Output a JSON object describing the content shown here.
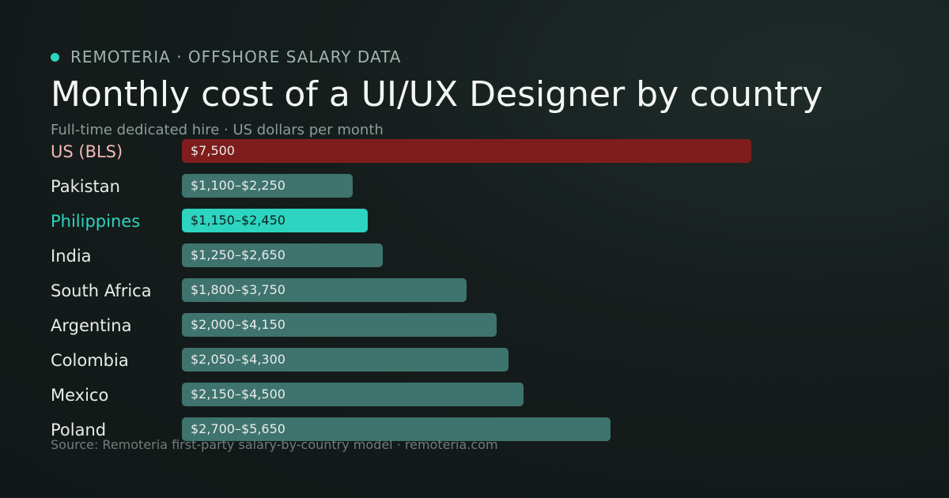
{
  "eyebrow": "REMOTERIA · OFFSHORE SALARY DATA",
  "title": "Monthly cost of a UI/UX Designer by country",
  "subtitle": "Full-time dedicated hire · US dollars per month",
  "source": "Source: Remoteria first-party salary-by-country model · remoteria.com",
  "colors": {
    "accent": "#2dd4bf",
    "us_bar": "#7f1d1d",
    "us_label": "#f2b8b5",
    "default_bar": "#3f736d",
    "bar_text": "#e8ecea",
    "highlight_text": "#0f1f1d"
  },
  "chart_data": {
    "type": "bar",
    "orientation": "horizontal",
    "unit": "US dollars per month",
    "categories": [
      "US (BLS)",
      "Pakistan",
      "Philippines",
      "India",
      "South Africa",
      "Argentina",
      "Colombia",
      "Mexico",
      "Poland"
    ],
    "value_labels": [
      "$7,500",
      "$1,100–$2,250",
      "$1,150–$2,450",
      "$1,250–$2,650",
      "$1,800–$3,750",
      "$2,000–$4,150",
      "$2,050–$4,300",
      "$2,150–$4,500",
      "$2,700–$5,650"
    ],
    "values": [
      7500,
      2250,
      2450,
      2650,
      3750,
      4150,
      4300,
      4500,
      5650
    ],
    "highlight": "Philippines",
    "benchmark": "US (BLS)",
    "xlim": [
      0,
      7500
    ]
  }
}
